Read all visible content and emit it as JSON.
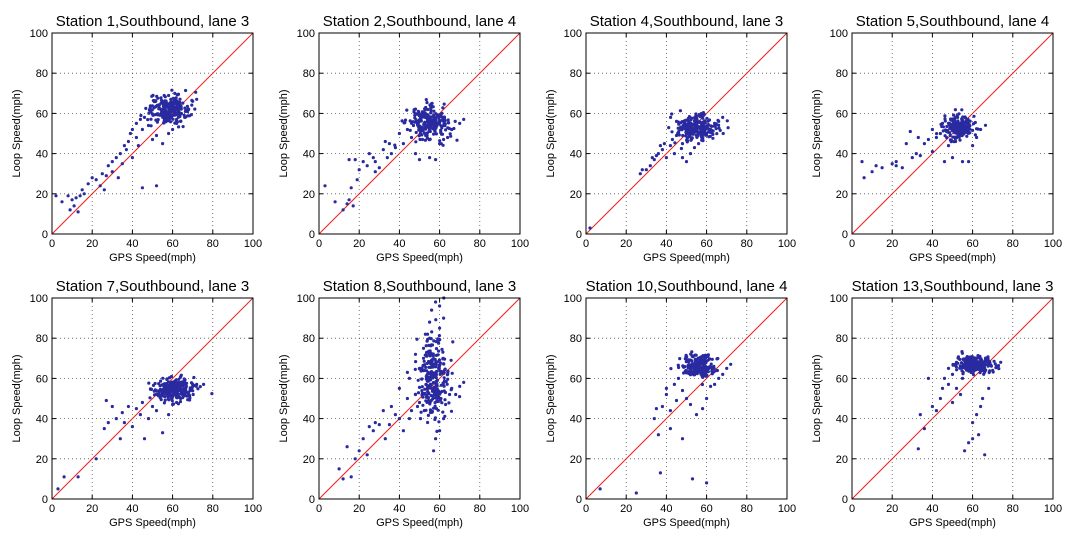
{
  "chart_data": [
    {
      "type": "scatter",
      "title": "Station 1,Southbound, lane 3",
      "xlabel": "GPS Speed(mph)",
      "ylabel": "Loop Speed(mph)",
      "xlim": [
        0,
        100
      ],
      "ylim": [
        0,
        100
      ],
      "xticks": [
        0,
        20,
        40,
        60,
        80,
        100
      ],
      "yticks": [
        0,
        20,
        40,
        60,
        80,
        100
      ],
      "grid": true,
      "reference_line": "y = x",
      "center": [
        58,
        62
      ],
      "spread": [
        5,
        3.5
      ],
      "count": 240,
      "points": [
        [
          2,
          19
        ],
        [
          5,
          16
        ],
        [
          8,
          19
        ],
        [
          9,
          12
        ],
        [
          10,
          17
        ],
        [
          11,
          14
        ],
        [
          12,
          18
        ],
        [
          13,
          11
        ],
        [
          14,
          19
        ],
        [
          15,
          22
        ],
        [
          16,
          20
        ],
        [
          18,
          25
        ],
        [
          20,
          28
        ],
        [
          22,
          27
        ],
        [
          24,
          24
        ],
        [
          25,
          30
        ],
        [
          27,
          29
        ],
        [
          28,
          34
        ],
        [
          30,
          36
        ],
        [
          30,
          31
        ],
        [
          32,
          38
        ],
        [
          33,
          28
        ],
        [
          34,
          40
        ],
        [
          36,
          44
        ],
        [
          37,
          42
        ],
        [
          38,
          46
        ],
        [
          39,
          50
        ],
        [
          40,
          38
        ],
        [
          40,
          52
        ],
        [
          42,
          48
        ],
        [
          42,
          55
        ],
        [
          43,
          44
        ],
        [
          44,
          57
        ],
        [
          45,
          23
        ],
        [
          45,
          52
        ],
        [
          46,
          58
        ],
        [
          48,
          54
        ],
        [
          50,
          47
        ],
        [
          52,
          24
        ],
        [
          52,
          49
        ],
        [
          55,
          45
        ],
        [
          58,
          50
        ],
        [
          60,
          52
        ],
        [
          62,
          55
        ],
        [
          64,
          56
        ],
        [
          66,
          58
        ],
        [
          68,
          62
        ],
        [
          70,
          66
        ],
        [
          72,
          67
        ],
        [
          26,
          22
        ],
        [
          35,
          35
        ]
      ]
    },
    {
      "type": "scatter",
      "title": "Station 2,Southbound, lane 4",
      "xlabel": "GPS Speed(mph)",
      "ylabel": "Loop Speed(mph)",
      "xlim": [
        0,
        100
      ],
      "ylim": [
        0,
        100
      ],
      "xticks": [
        0,
        20,
        40,
        60,
        80,
        100
      ],
      "yticks": [
        0,
        20,
        40,
        60,
        80,
        100
      ],
      "grid": true,
      "reference_line": "y = x",
      "center": [
        54,
        55
      ],
      "spread": [
        5,
        4
      ],
      "count": 220,
      "points": [
        [
          3,
          24
        ],
        [
          8,
          16
        ],
        [
          12,
          12
        ],
        [
          14,
          15
        ],
        [
          15,
          17
        ],
        [
          15,
          37
        ],
        [
          16,
          23
        ],
        [
          17,
          14
        ],
        [
          18,
          37
        ],
        [
          19,
          27
        ],
        [
          20,
          32
        ],
        [
          22,
          36
        ],
        [
          24,
          34
        ],
        [
          25,
          40
        ],
        [
          27,
          38
        ],
        [
          28,
          36
        ],
        [
          30,
          33
        ],
        [
          32,
          42
        ],
        [
          34,
          38
        ],
        [
          35,
          45
        ],
        [
          36,
          40
        ],
        [
          38,
          43
        ],
        [
          40,
          50
        ],
        [
          42,
          45
        ],
        [
          44,
          52
        ],
        [
          46,
          48
        ],
        [
          48,
          40
        ],
        [
          50,
          37
        ],
        [
          55,
          38
        ],
        [
          58,
          37
        ],
        [
          60,
          45
        ],
        [
          62,
          47
        ],
        [
          64,
          48
        ],
        [
          66,
          52
        ],
        [
          70,
          55
        ],
        [
          72,
          57
        ],
        [
          28,
          31
        ],
        [
          33,
          46
        ]
      ]
    },
    {
      "type": "scatter",
      "title": "Station 4,Southbound, lane 3",
      "xlabel": "GPS Speed(mph)",
      "ylabel": "Loop Speed(mph)",
      "xlim": [
        0,
        100
      ],
      "ylim": [
        0,
        100
      ],
      "xticks": [
        0,
        20,
        40,
        60,
        80,
        100
      ],
      "yticks": [
        0,
        20,
        40,
        60,
        80,
        100
      ],
      "grid": true,
      "reference_line": "y = x",
      "center": [
        55,
        53
      ],
      "spread": [
        5,
        3
      ],
      "count": 230,
      "points": [
        [
          2,
          3
        ],
        [
          27,
          30
        ],
        [
          28,
          32
        ],
        [
          30,
          32
        ],
        [
          32,
          34
        ],
        [
          34,
          37
        ],
        [
          35,
          39
        ],
        [
          36,
          40
        ],
        [
          38,
          42
        ],
        [
          39,
          45
        ],
        [
          40,
          38
        ],
        [
          42,
          44
        ],
        [
          43,
          47
        ],
        [
          44,
          40
        ],
        [
          45,
          49
        ],
        [
          46,
          50
        ],
        [
          48,
          38
        ],
        [
          48,
          45
        ],
        [
          50,
          36
        ],
        [
          52,
          40
        ],
        [
          54,
          43
        ],
        [
          56,
          45
        ],
        [
          58,
          47
        ],
        [
          60,
          50
        ],
        [
          62,
          52
        ],
        [
          64,
          55
        ],
        [
          66,
          56
        ],
        [
          68,
          58
        ],
        [
          33,
          38
        ],
        [
          37,
          44
        ]
      ]
    },
    {
      "type": "scatter",
      "title": "Station 5,Southbound, lane 4",
      "xlabel": "GPS Speed(mph)",
      "ylabel": "Loop Speed(mph)",
      "xlim": [
        0,
        100
      ],
      "ylim": [
        0,
        100
      ],
      "xticks": [
        0,
        20,
        40,
        60,
        80,
        100
      ],
      "yticks": [
        0,
        20,
        40,
        60,
        80,
        100
      ],
      "grid": true,
      "reference_line": "y = x",
      "center": [
        53,
        53
      ],
      "spread": [
        4,
        3
      ],
      "count": 200,
      "points": [
        [
          5,
          36
        ],
        [
          6,
          28
        ],
        [
          10,
          31
        ],
        [
          12,
          34
        ],
        [
          15,
          33
        ],
        [
          20,
          35
        ],
        [
          22,
          36
        ],
        [
          25,
          33
        ],
        [
          27,
          45
        ],
        [
          29,
          51
        ],
        [
          30,
          38
        ],
        [
          32,
          40
        ],
        [
          34,
          39
        ],
        [
          36,
          45
        ],
        [
          38,
          47
        ],
        [
          40,
          41
        ],
        [
          40,
          52
        ],
        [
          42,
          48
        ],
        [
          44,
          50
        ],
        [
          45,
          55
        ],
        [
          46,
          36
        ],
        [
          48,
          44
        ],
        [
          50,
          38
        ],
        [
          55,
          36
        ],
        [
          58,
          36
        ],
        [
          60,
          44
        ],
        [
          62,
          48
        ],
        [
          64,
          52
        ],
        [
          22,
          34
        ],
        [
          33,
          48
        ]
      ]
    },
    {
      "type": "scatter",
      "title": "Station 7,Southbound, lane 3",
      "xlabel": "GPS Speed(mph)",
      "ylabel": "Loop Speed(mph)",
      "xlim": [
        0,
        100
      ],
      "ylim": [
        0,
        100
      ],
      "xticks": [
        0,
        20,
        40,
        60,
        80,
        100
      ],
      "yticks": [
        0,
        20,
        40,
        60,
        80,
        100
      ],
      "grid": true,
      "reference_line": "y = x",
      "center": [
        60,
        54
      ],
      "spread": [
        5,
        3
      ],
      "count": 230,
      "points": [
        [
          3,
          5
        ],
        [
          6,
          11
        ],
        [
          13,
          11
        ],
        [
          22,
          20
        ],
        [
          26,
          35
        ],
        [
          27,
          49
        ],
        [
          30,
          46
        ],
        [
          32,
          40
        ],
        [
          34,
          30
        ],
        [
          36,
          38
        ],
        [
          38,
          46
        ],
        [
          40,
          36
        ],
        [
          42,
          45
        ],
        [
          44,
          42
        ],
        [
          45,
          48
        ],
        [
          46,
          30
        ],
        [
          48,
          40
        ],
        [
          50,
          46
        ],
        [
          52,
          44
        ],
        [
          55,
          33
        ],
        [
          58,
          42
        ],
        [
          60,
          47
        ],
        [
          62,
          48
        ],
        [
          64,
          50
        ],
        [
          66,
          52
        ],
        [
          68,
          53
        ],
        [
          70,
          56
        ],
        [
          72,
          57
        ],
        [
          28,
          38
        ],
        [
          35,
          43
        ]
      ]
    },
    {
      "type": "scatter",
      "title": "Station 8,Southbound, lane 3",
      "xlabel": "GPS Speed(mph)",
      "ylabel": "Loop Speed(mph)",
      "xlim": [
        0,
        100
      ],
      "ylim": [
        0,
        100
      ],
      "xticks": [
        0,
        20,
        40,
        60,
        80,
        100
      ],
      "yticks": [
        0,
        20,
        40,
        60,
        80,
        100
      ],
      "grid": true,
      "reference_line": "y = x",
      "center": [
        57,
        60
      ],
      "spread": [
        4,
        10
      ],
      "count": 260,
      "points": [
        [
          10,
          15
        ],
        [
          12,
          10
        ],
        [
          14,
          26
        ],
        [
          16,
          11
        ],
        [
          18,
          20
        ],
        [
          20,
          24
        ],
        [
          22,
          30
        ],
        [
          24,
          22
        ],
        [
          25,
          36
        ],
        [
          27,
          34
        ],
        [
          28,
          38
        ],
        [
          30,
          37
        ],
        [
          32,
          44
        ],
        [
          33,
          30
        ],
        [
          35,
          37
        ],
        [
          36,
          46
        ],
        [
          38,
          42
        ],
        [
          40,
          40
        ],
        [
          40,
          55
        ],
        [
          42,
          34
        ],
        [
          44,
          50
        ],
        [
          45,
          40
        ],
        [
          46,
          44
        ],
        [
          48,
          52
        ],
        [
          49,
          46
        ],
        [
          50,
          48
        ],
        [
          50,
          65
        ],
        [
          52,
          70
        ],
        [
          54,
          82
        ],
        [
          55,
          88
        ],
        [
          56,
          94
        ],
        [
          58,
          98
        ],
        [
          60,
          96
        ],
        [
          57,
          24
        ],
        [
          58,
          30
        ],
        [
          60,
          34
        ],
        [
          62,
          40
        ],
        [
          63,
          47
        ],
        [
          65,
          52
        ],
        [
          66,
          55
        ],
        [
          68,
          52
        ],
        [
          70,
          56
        ],
        [
          72,
          58
        ],
        [
          52,
          75
        ],
        [
          55,
          80
        ],
        [
          60,
          85
        ],
        [
          62,
          90
        ],
        [
          48,
          72
        ],
        [
          45,
          60
        ],
        [
          44,
          63
        ]
      ]
    },
    {
      "type": "scatter",
      "title": "Station 10,Southbound, lane 4",
      "xlabel": "GPS Speed(mph)",
      "ylabel": "Loop Speed(mph)",
      "xlim": [
        0,
        100
      ],
      "ylim": [
        0,
        100
      ],
      "xticks": [
        0,
        20,
        40,
        60,
        80,
        100
      ],
      "yticks": [
        0,
        20,
        40,
        60,
        80,
        100
      ],
      "grid": true,
      "reference_line": "y = x",
      "center": [
        56,
        66
      ],
      "spread": [
        4,
        3
      ],
      "count": 230,
      "points": [
        [
          7,
          5
        ],
        [
          25,
          3
        ],
        [
          34,
          40
        ],
        [
          36,
          32
        ],
        [
          37,
          13
        ],
        [
          38,
          46
        ],
        [
          40,
          52
        ],
        [
          42,
          44
        ],
        [
          42,
          35
        ],
        [
          44,
          57
        ],
        [
          45,
          49
        ],
        [
          46,
          60
        ],
        [
          48,
          54
        ],
        [
          48,
          30
        ],
        [
          50,
          50
        ],
        [
          50,
          63
        ],
        [
          52,
          47
        ],
        [
          53,
          10
        ],
        [
          55,
          42
        ],
        [
          58,
          45
        ],
        [
          60,
          8
        ],
        [
          60,
          50
        ],
        [
          62,
          56
        ],
        [
          64,
          57
        ],
        [
          66,
          60
        ],
        [
          68,
          62
        ],
        [
          70,
          65
        ],
        [
          72,
          67
        ],
        [
          40,
          55
        ],
        [
          35,
          45
        ]
      ]
    },
    {
      "type": "scatter",
      "title": "Station 13,Southbound, lane 3",
      "xlabel": "GPS Speed(mph)",
      "ylabel": "Loop Speed(mph)",
      "xlim": [
        0,
        100
      ],
      "ylim": [
        0,
        100
      ],
      "xticks": [
        0,
        20,
        40,
        60,
        80,
        100
      ],
      "yticks": [
        0,
        20,
        40,
        60,
        80,
        100
      ],
      "grid": true,
      "reference_line": "y = x",
      "center": [
        61,
        67
      ],
      "spread": [
        4,
        2
      ],
      "count": 230,
      "points": [
        [
          33,
          25
        ],
        [
          34,
          42
        ],
        [
          36,
          35
        ],
        [
          38,
          60
        ],
        [
          40,
          46
        ],
        [
          42,
          44
        ],
        [
          44,
          50
        ],
        [
          45,
          55
        ],
        [
          46,
          60
        ],
        [
          48,
          57
        ],
        [
          48,
          65
        ],
        [
          50,
          48
        ],
        [
          50,
          62
        ],
        [
          52,
          55
        ],
        [
          52,
          68
        ],
        [
          54,
          52
        ],
        [
          55,
          60
        ],
        [
          56,
          24
        ],
        [
          58,
          28
        ],
        [
          60,
          30
        ],
        [
          60,
          38
        ],
        [
          62,
          42
        ],
        [
          63,
          32
        ],
        [
          64,
          46
        ],
        [
          65,
          50
        ],
        [
          66,
          22
        ],
        [
          68,
          55
        ],
        [
          70,
          64
        ],
        [
          72,
          66
        ],
        [
          74,
          68
        ]
      ]
    }
  ],
  "colors": {
    "points": "#2a2aa0",
    "reference_line": "#e8201f",
    "grid": "#555555",
    "axes": "#000000"
  }
}
